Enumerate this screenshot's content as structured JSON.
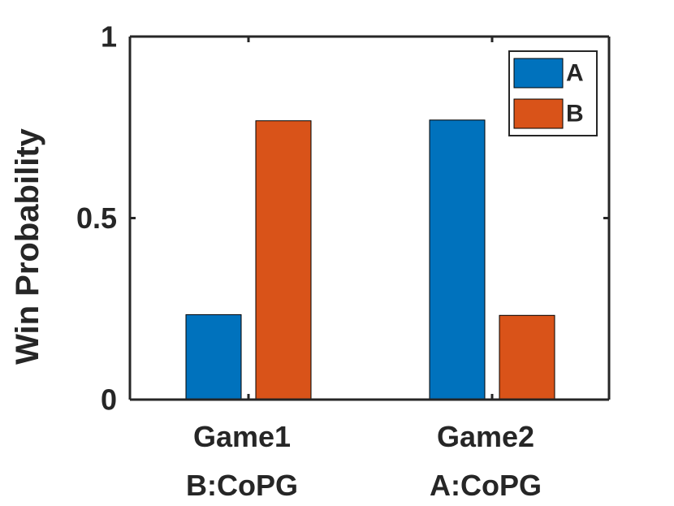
{
  "chart_data": {
    "type": "bar",
    "title": "",
    "xlabel": "",
    "ylabel": "Win Probability",
    "ylim": [
      0,
      1
    ],
    "yticks": [
      0,
      0.5,
      1
    ],
    "ytick_labels": [
      "0",
      "0.5",
      "1"
    ],
    "grid": false,
    "categories": [
      "Game1",
      "Game2"
    ],
    "category_sublabels": [
      "B:CoPG",
      "A:CoPG"
    ],
    "series": [
      {
        "name": "A",
        "color": "#0072BD",
        "values": [
          0.234,
          0.77
        ]
      },
      {
        "name": "B",
        "color": "#D95319",
        "values": [
          0.768,
          0.232
        ]
      }
    ],
    "legend_position": "top-right"
  }
}
